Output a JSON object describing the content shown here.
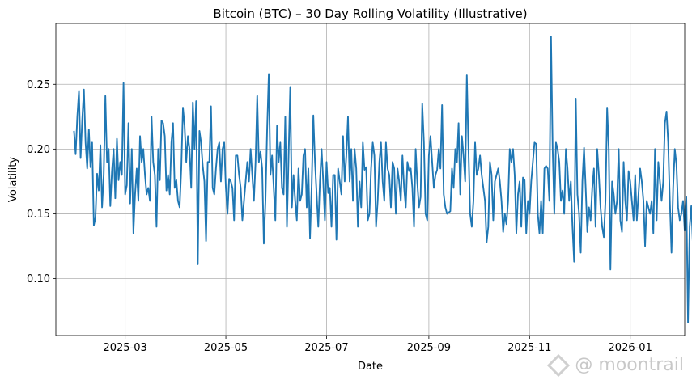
{
  "chart_data": {
    "type": "line",
    "title": "Bitcoin (BTC) – 30 Day Rolling Volatility (Illustrative)",
    "xlabel": "Date",
    "ylabel": "Volatility",
    "x_start": "2025-01-29",
    "x_range": [
      "2025-01-18",
      "2026-02-03"
    ],
    "ylim": [
      0.056,
      0.297
    ],
    "grid": true,
    "color": "#1f77b4",
    "xticks": [
      "2025-03",
      "2025-05",
      "2025-07",
      "2025-09",
      "2025-11",
      "2026-01"
    ],
    "xtick_dates": [
      "2025-03-01",
      "2025-05-01",
      "2025-07-01",
      "2025-09-01",
      "2025-11-01",
      "2026-01-01"
    ],
    "yticks": [
      "0.10",
      "0.15",
      "0.20",
      "0.25"
    ],
    "ytick_values": [
      0.1,
      0.15,
      0.2,
      0.25
    ],
    "values": [
      0.214,
      0.196,
      0.225,
      0.245,
      0.193,
      0.223,
      0.246,
      0.205,
      0.185,
      0.215,
      0.186,
      0.205,
      0.141,
      0.147,
      0.181,
      0.168,
      0.203,
      0.155,
      0.18,
      0.241,
      0.19,
      0.2,
      0.156,
      0.183,
      0.2,
      0.162,
      0.208,
      0.176,
      0.19,
      0.18,
      0.251,
      0.165,
      0.172,
      0.22,
      0.158,
      0.2,
      0.135,
      0.165,
      0.185,
      0.16,
      0.21,
      0.19,
      0.2,
      0.18,
      0.165,
      0.17,
      0.16,
      0.225,
      0.19,
      0.18,
      0.14,
      0.2,
      0.176,
      0.222,
      0.22,
      0.21,
      0.168,
      0.18,
      0.165,
      0.205,
      0.22,
      0.17,
      0.176,
      0.16,
      0.155,
      0.185,
      0.232,
      0.218,
      0.19,
      0.21,
      0.2,
      0.17,
      0.236,
      0.2,
      0.237,
      0.111,
      0.214,
      0.205,
      0.187,
      0.175,
      0.129,
      0.19,
      0.19,
      0.233,
      0.17,
      0.165,
      0.185,
      0.2,
      0.205,
      0.175,
      0.2,
      0.205,
      0.17,
      0.15,
      0.177,
      0.175,
      0.17,
      0.145,
      0.195,
      0.195,
      0.18,
      0.17,
      0.145,
      0.16,
      0.175,
      0.19,
      0.175,
      0.2,
      0.18,
      0.16,
      0.19,
      0.241,
      0.19,
      0.198,
      0.185,
      0.127,
      0.16,
      0.215,
      0.258,
      0.18,
      0.195,
      0.17,
      0.145,
      0.218,
      0.19,
      0.205,
      0.17,
      0.165,
      0.225,
      0.14,
      0.194,
      0.248,
      0.155,
      0.18,
      0.16,
      0.145,
      0.185,
      0.16,
      0.165,
      0.195,
      0.2,
      0.155,
      0.185,
      0.131,
      0.172,
      0.226,
      0.19,
      0.165,
      0.14,
      0.175,
      0.2,
      0.175,
      0.145,
      0.19,
      0.166,
      0.17,
      0.14,
      0.18,
      0.18,
      0.13,
      0.185,
      0.175,
      0.165,
      0.21,
      0.175,
      0.195,
      0.225,
      0.175,
      0.2,
      0.16,
      0.2,
      0.185,
      0.14,
      0.175,
      0.155,
      0.205,
      0.184,
      0.186,
      0.145,
      0.15,
      0.185,
      0.205,
      0.195,
      0.14,
      0.16,
      0.19,
      0.205,
      0.175,
      0.16,
      0.205,
      0.185,
      0.18,
      0.155,
      0.19,
      0.185,
      0.15,
      0.185,
      0.175,
      0.16,
      0.195,
      0.17,
      0.155,
      0.19,
      0.183,
      0.185,
      0.17,
      0.14,
      0.2,
      0.174,
      0.155,
      0.163,
      0.235,
      0.205,
      0.15,
      0.145,
      0.195,
      0.21,
      0.19,
      0.17,
      0.18,
      0.184,
      0.2,
      0.185,
      0.234,
      0.165,
      0.155,
      0.15,
      0.151,
      0.152,
      0.185,
      0.17,
      0.2,
      0.19,
      0.22,
      0.165,
      0.21,
      0.195,
      0.175,
      0.257,
      0.2,
      0.15,
      0.14,
      0.16,
      0.205,
      0.18,
      0.185,
      0.195,
      0.18,
      0.17,
      0.16,
      0.128,
      0.14,
      0.19,
      0.18,
      0.145,
      0.175,
      0.18,
      0.185,
      0.175,
      0.16,
      0.136,
      0.15,
      0.142,
      0.16,
      0.2,
      0.19,
      0.2,
      0.18,
      0.135,
      0.165,
      0.175,
      0.14,
      0.178,
      0.176,
      0.135,
      0.16,
      0.15,
      0.175,
      0.19,
      0.205,
      0.204,
      0.15,
      0.135,
      0.16,
      0.135,
      0.185,
      0.187,
      0.185,
      0.16,
      0.287,
      0.2,
      0.15,
      0.205,
      0.2,
      0.19,
      0.16,
      0.168,
      0.15,
      0.2,
      0.185,
      0.16,
      0.175,
      0.14,
      0.113,
      0.239,
      0.165,
      0.15,
      0.12,
      0.175,
      0.201,
      0.17,
      0.136,
      0.155,
      0.145,
      0.17,
      0.185,
      0.14,
      0.2,
      0.18,
      0.155,
      0.14,
      0.132,
      0.16,
      0.232,
      0.2,
      0.107,
      0.175,
      0.165,
      0.15,
      0.16,
      0.2,
      0.145,
      0.136,
      0.19,
      0.16,
      0.145,
      0.183,
      0.175,
      0.16,
      0.145,
      0.18,
      0.145,
      0.165,
      0.185,
      0.175,
      0.16,
      0.125,
      0.16,
      0.155,
      0.15,
      0.16,
      0.135,
      0.2,
      0.145,
      0.19,
      0.175,
      0.16,
      0.175,
      0.22,
      0.229,
      0.205,
      0.16,
      0.12,
      0.17,
      0.2,
      0.188,
      0.155,
      0.145,
      0.15,
      0.16,
      0.137,
      0.163,
      0.066,
      0.14,
      0.156,
      0.125,
      0.165,
      0.155,
      0.12,
      0.175,
      0.216,
      0.205,
      0.13,
      0.12,
      0.195,
      0.135,
      0.175,
      0.15,
      0.14,
      0.165,
      0.125,
      0.2,
      0.16,
      0.175,
      0.185,
      0.14,
      0.16,
      0.15,
      0.165,
      0.205,
      0.225,
      0.16,
      0.124,
      0.225,
      0.102,
      0.19,
      0.17,
      0.155,
      0.16,
      0.15,
      0.145,
      0.185,
      0.176,
      0.14,
      0.145,
      0.175,
      0.18,
      0.165,
      0.17,
      0.155,
      0.16,
      0.15,
      0.175,
      0.17,
      0.186,
      0.17,
      0.155,
      0.145,
      0.154,
      0.152,
      0.14,
      0.145,
      0.15,
      0.16,
      0.158,
      0.19,
      0.175,
      0.148,
      0.18,
      0.165,
      0.15,
      0.16,
      0.19,
      0.187,
      0.188,
      0.175,
      0.155,
      0.145,
      0.18,
      0.15,
      0.135,
      0.17,
      0.185,
      0.195,
      0.185,
      0.14,
      0.16,
      0.175,
      0.165,
      0.145,
      0.18,
      0.165,
      0.15,
      0.15,
      0.175,
      0.19,
      0.19,
      0.196,
      0.16,
      0.168,
      0.155,
      0.135,
      0.14,
      0.17,
      0.165,
      0.15,
      0.162,
      0.145,
      0.16,
      0.155,
      0.145,
      0.16,
      0.15,
      0.14,
      0.16,
      0.219,
      0.155,
      0.19,
      0.145,
      0.125,
      0.12,
      0.19,
      0.181,
      0.175,
      0.175,
      0.16,
      0.155,
      0.145,
      0.16,
      0.155,
      0.135,
      0.15,
      0.16,
      0.145,
      0.15,
      0.16,
      0.13,
      0.175,
      0.17,
      0.165,
      0.155,
      0.14,
      0.16,
      0.133,
      0.166,
      0.15,
      0.14,
      0.153,
      0.148,
      0.165,
      0.15,
      0.145,
      0.135,
      0.16,
      0.15,
      0.12,
      0.165,
      0.15,
      0.15,
      0.13,
      0.16,
      0.14,
      0.155,
      0.16,
      0.165,
      0.155,
      0.145,
      0.145,
      0.15,
      0.128,
      0.14,
      0.16,
      0.14,
      0.155,
      0.165,
      0.166,
      0.17
    ]
  },
  "watermark": {
    "icon": "moontrail-logo-icon",
    "text": "@ moontrail"
  }
}
